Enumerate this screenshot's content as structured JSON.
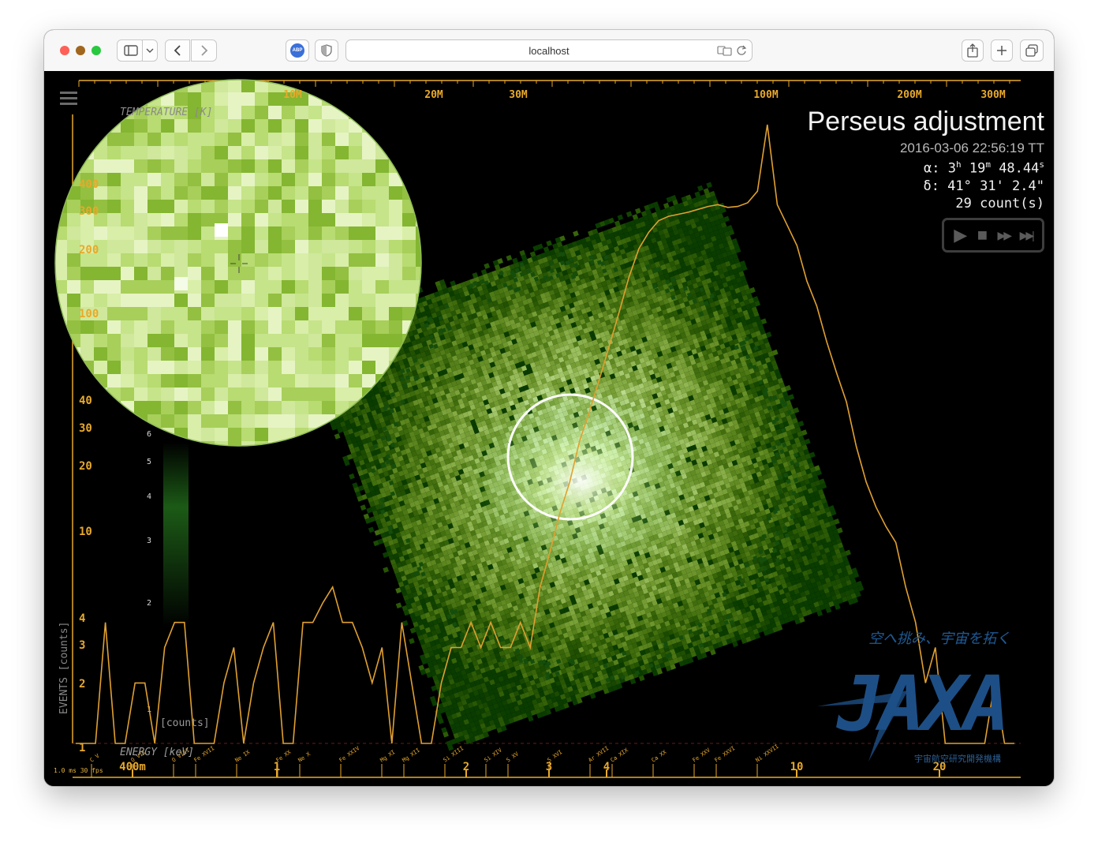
{
  "browser": {
    "url": "localhost",
    "adblock_label": "ABP"
  },
  "info": {
    "title": "Perseus adjustment",
    "datetime": "2016-03-06 22:56:19 TT",
    "ra_label": "α:",
    "ra_h": "3",
    "ra_h_unit": "h",
    "ra_m": "19",
    "ra_m_unit": "m",
    "ra_s": "48.44",
    "ra_s_unit": "s",
    "dec": "δ:  41° 31' 2.4\"",
    "counts": "29 count(s)"
  },
  "player": {
    "play": "▶",
    "stop": "■",
    "forward": "▶▶",
    "end": "▶▶|"
  },
  "axes": {
    "top_ticks": [
      "10M",
      "20M",
      "30M",
      "100M",
      "200M",
      "300M"
    ],
    "temperature_label": "TEMPERATURE [K]",
    "left_ticks": [
      "400",
      "300",
      "200",
      "100",
      "40",
      "30",
      "20",
      "10",
      "4",
      "3",
      "2",
      "1"
    ],
    "events_label": "EVENTS [counts]",
    "colorbar_ticks": [
      "6",
      "5",
      "4",
      "3",
      "2",
      "1"
    ],
    "colorbar_label": "[counts]",
    "energy_label": "ENERGY [keV]",
    "bottom_ticks": [
      "400m",
      "1",
      "2",
      "3",
      "4",
      "10",
      "20"
    ],
    "lines": [
      "C V",
      "O VII",
      "O VIII",
      "Fe XVII",
      "Ne IX",
      "Fe XX",
      "Ne X",
      "Fe XXIV",
      "Mg XI",
      "Mg XII",
      "Si XIII",
      "Si XIV",
      "S XV",
      "S XVI",
      "Ar XVII",
      "Ca XIX",
      "Ca XX",
      "Fe XXV",
      "Fe XXVI",
      "Ni XXVII"
    ]
  },
  "stats": {
    "ms": "1.0 ms",
    "fps": "30 fps"
  },
  "logo": {
    "tagline": "空へ挑み、宇宙を拓く",
    "name": "JAXA",
    "org": "宇宙航空研究開発機構"
  },
  "colors": {
    "accent": "#e8a92b",
    "spectrum": "#e0a030",
    "image": "#3a8a1a",
    "ring": "#ffffff"
  },
  "chart_data": {
    "type": "line",
    "series": [
      {
        "values": [
          1,
          1,
          1,
          4,
          1,
          1,
          2,
          2,
          1,
          3,
          4,
          4,
          1,
          1,
          1,
          2,
          3,
          1,
          2,
          3,
          4,
          1,
          1,
          4,
          4,
          5,
          6,
          4,
          4,
          3,
          2,
          3,
          1,
          4,
          2,
          1,
          1,
          2,
          3,
          3,
          4,
          3,
          4,
          3,
          3,
          4,
          3,
          6,
          9,
          14,
          20,
          32,
          45,
          65,
          95,
          140,
          210,
          290,
          350,
          400,
          420,
          430,
          440,
          455,
          470,
          480,
          465,
          470,
          490,
          560,
          1200,
          480,
          380,
          300,
          200,
          150,
          100,
          70,
          50,
          30,
          20,
          15,
          12,
          10,
          6,
          4,
          2,
          3,
          1,
          1,
          1,
          1,
          1,
          2,
          1,
          1
        ]
      }
    ]
  }
}
